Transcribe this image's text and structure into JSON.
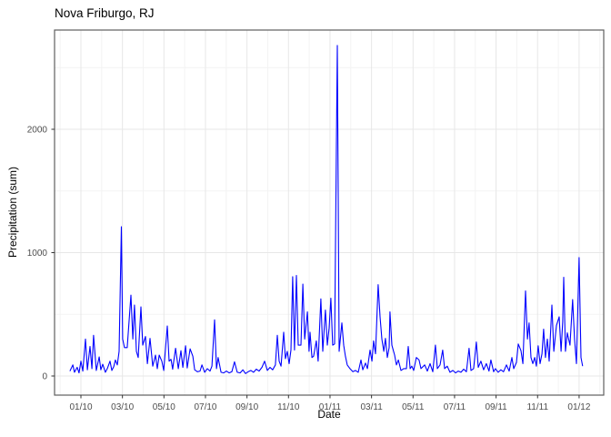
{
  "chart_data": {
    "type": "line",
    "title": "Nova Friburgo, RJ",
    "xlabel": "Date",
    "ylabel": "Precipitation (sum)",
    "legend": "none",
    "grid": "on",
    "line_color": "#0000FF",
    "background_color": "#ffffff",
    "grid_major_color": "#e7e7e7",
    "grid_minor_color": "#f3f3f3",
    "panel_border_color": "#5f5f5f",
    "axis_text_color": "#4d4d4d",
    "ylim": [
      -155,
      2805
    ],
    "xlim_months": [
      -1.27,
      25.18
    ],
    "y_ticks": [
      0,
      1000,
      2000
    ],
    "y_minor_ticks": [
      500,
      1500,
      2500
    ],
    "x_ticks": [
      {
        "pos": 0,
        "label": "01/10"
      },
      {
        "pos": 2,
        "label": "03/10"
      },
      {
        "pos": 4,
        "label": "05/10"
      },
      {
        "pos": 6,
        "label": "07/10"
      },
      {
        "pos": 8,
        "label": "09/10"
      },
      {
        "pos": 10,
        "label": "11/10"
      },
      {
        "pos": 12,
        "label": "01/11"
      },
      {
        "pos": 14,
        "label": "03/11"
      },
      {
        "pos": 16,
        "label": "05/11"
      },
      {
        "pos": 18,
        "label": "07/11"
      },
      {
        "pos": 20,
        "label": "09/11"
      },
      {
        "pos": 22,
        "label": "11/11"
      },
      {
        "pos": 24,
        "label": "01/12"
      }
    ],
    "x_minor_step": 1,
    "series": [
      {
        "name": "precipitation-sum",
        "x_unit": "months-since-2010-01",
        "points": [
          [
            -0.53,
            40
          ],
          [
            -0.39,
            90
          ],
          [
            -0.31,
            30
          ],
          [
            -0.18,
            70
          ],
          [
            -0.09,
            25
          ],
          [
            0,
            120
          ],
          [
            0.09,
            40
          ],
          [
            0.22,
            300
          ],
          [
            0.31,
            50
          ],
          [
            0.44,
            240
          ],
          [
            0.53,
            60
          ],
          [
            0.61,
            330
          ],
          [
            0.74,
            45
          ],
          [
            0.88,
            155
          ],
          [
            0.96,
            50
          ],
          [
            1.05,
            95
          ],
          [
            1.18,
            30
          ],
          [
            1.27,
            60
          ],
          [
            1.4,
            120
          ],
          [
            1.49,
            45
          ],
          [
            1.58,
            75
          ],
          [
            1.66,
            130
          ],
          [
            1.75,
            90
          ],
          [
            1.84,
            200
          ],
          [
            1.95,
            1210
          ],
          [
            2.01,
            300
          ],
          [
            2.1,
            230
          ],
          [
            2.23,
            230
          ],
          [
            2.41,
            655
          ],
          [
            2.5,
            300
          ],
          [
            2.58,
            575
          ],
          [
            2.67,
            200
          ],
          [
            2.76,
            150
          ],
          [
            2.89,
            560
          ],
          [
            2.98,
            250
          ],
          [
            3.11,
            320
          ],
          [
            3.2,
            100
          ],
          [
            3.33,
            305
          ],
          [
            3.46,
            80
          ],
          [
            3.59,
            170
          ],
          [
            3.68,
            60
          ],
          [
            3.77,
            170
          ],
          [
            3.9,
            120
          ],
          [
            3.99,
            45
          ],
          [
            4.16,
            405
          ],
          [
            4.25,
            120
          ],
          [
            4.34,
            135
          ],
          [
            4.42,
            55
          ],
          [
            4.56,
            225
          ],
          [
            4.69,
            60
          ],
          [
            4.82,
            205
          ],
          [
            4.91,
            70
          ],
          [
            5.04,
            245
          ],
          [
            5.12,
            65
          ],
          [
            5.26,
            220
          ],
          [
            5.39,
            160
          ],
          [
            5.48,
            50
          ],
          [
            5.61,
            35
          ],
          [
            5.74,
            40
          ],
          [
            5.83,
            90
          ],
          [
            5.96,
            30
          ],
          [
            6.09,
            60
          ],
          [
            6.22,
            40
          ],
          [
            6.31,
            80
          ],
          [
            6.44,
            455
          ],
          [
            6.53,
            60
          ],
          [
            6.61,
            150
          ],
          [
            6.75,
            30
          ],
          [
            6.88,
            25
          ],
          [
            7.01,
            40
          ],
          [
            7.14,
            25
          ],
          [
            7.27,
            35
          ],
          [
            7.4,
            115
          ],
          [
            7.53,
            30
          ],
          [
            7.67,
            25
          ],
          [
            7.8,
            50
          ],
          [
            7.93,
            20
          ],
          [
            8.06,
            35
          ],
          [
            8.19,
            45
          ],
          [
            8.32,
            30
          ],
          [
            8.45,
            55
          ],
          [
            8.58,
            40
          ],
          [
            8.72,
            70
          ],
          [
            8.85,
            120
          ],
          [
            8.98,
            45
          ],
          [
            9.11,
            70
          ],
          [
            9.24,
            50
          ],
          [
            9.37,
            90
          ],
          [
            9.46,
            330
          ],
          [
            9.55,
            120
          ],
          [
            9.64,
            80
          ],
          [
            9.77,
            355
          ],
          [
            9.85,
            140
          ],
          [
            9.94,
            200
          ],
          [
            10.03,
            100
          ],
          [
            10.12,
            210
          ],
          [
            10.2,
            805
          ],
          [
            10.29,
            210
          ],
          [
            10.38,
            815
          ],
          [
            10.47,
            250
          ],
          [
            10.6,
            250
          ],
          [
            10.69,
            745
          ],
          [
            10.78,
            300
          ],
          [
            10.91,
            520
          ],
          [
            10.99,
            200
          ],
          [
            11.04,
            355
          ],
          [
            11.13,
            150
          ],
          [
            11.21,
            160
          ],
          [
            11.34,
            285
          ],
          [
            11.43,
            120
          ],
          [
            11.56,
            625
          ],
          [
            11.65,
            200
          ],
          [
            11.78,
            535
          ],
          [
            11.87,
            250
          ],
          [
            11.96,
            390
          ],
          [
            12.04,
            630
          ],
          [
            12.13,
            250
          ],
          [
            12.22,
            260
          ],
          [
            12.35,
            2680
          ],
          [
            12.44,
            200
          ],
          [
            12.57,
            430
          ],
          [
            12.66,
            250
          ],
          [
            12.74,
            160
          ],
          [
            12.83,
            90
          ],
          [
            12.96,
            60
          ],
          [
            13.1,
            35
          ],
          [
            13.23,
            45
          ],
          [
            13.36,
            30
          ],
          [
            13.49,
            130
          ],
          [
            13.58,
            50
          ],
          [
            13.71,
            105
          ],
          [
            13.8,
            60
          ],
          [
            13.93,
            210
          ],
          [
            14.02,
            120
          ],
          [
            14.1,
            285
          ],
          [
            14.19,
            180
          ],
          [
            14.32,
            740
          ],
          [
            14.41,
            480
          ],
          [
            14.5,
            300
          ],
          [
            14.59,
            200
          ],
          [
            14.67,
            305
          ],
          [
            14.76,
            150
          ],
          [
            14.85,
            230
          ],
          [
            14.89,
            520
          ],
          [
            14.98,
            250
          ],
          [
            15.11,
            170
          ],
          [
            15.2,
            90
          ],
          [
            15.29,
            130
          ],
          [
            15.42,
            45
          ],
          [
            15.55,
            60
          ],
          [
            15.68,
            60
          ],
          [
            15.77,
            240
          ],
          [
            15.86,
            60
          ],
          [
            15.94,
            80
          ],
          [
            16.03,
            45
          ],
          [
            16.16,
            150
          ],
          [
            16.29,
            130
          ],
          [
            16.38,
            60
          ],
          [
            16.56,
            90
          ],
          [
            16.69,
            40
          ],
          [
            16.82,
            100
          ],
          [
            16.95,
            35
          ],
          [
            17.08,
            250
          ],
          [
            17.17,
            60
          ],
          [
            17.3,
            90
          ],
          [
            17.43,
            210
          ],
          [
            17.52,
            60
          ],
          [
            17.65,
            80
          ],
          [
            17.78,
            30
          ],
          [
            17.92,
            45
          ],
          [
            18.05,
            25
          ],
          [
            18.18,
            40
          ],
          [
            18.31,
            30
          ],
          [
            18.44,
            55
          ],
          [
            18.57,
            35
          ],
          [
            18.7,
            225
          ],
          [
            18.79,
            45
          ],
          [
            18.92,
            60
          ],
          [
            19.05,
            275
          ],
          [
            19.14,
            70
          ],
          [
            19.27,
            120
          ],
          [
            19.4,
            50
          ],
          [
            19.53,
            100
          ],
          [
            19.66,
            40
          ],
          [
            19.75,
            130
          ],
          [
            19.88,
            35
          ],
          [
            19.97,
            60
          ],
          [
            20.1,
            30
          ],
          [
            20.23,
            50
          ],
          [
            20.36,
            35
          ],
          [
            20.5,
            90
          ],
          [
            20.63,
            40
          ],
          [
            20.76,
            150
          ],
          [
            20.85,
            60
          ],
          [
            20.98,
            110
          ],
          [
            21.07,
            260
          ],
          [
            21.2,
            205
          ],
          [
            21.29,
            100
          ],
          [
            21.42,
            690
          ],
          [
            21.51,
            300
          ],
          [
            21.59,
            430
          ],
          [
            21.68,
            150
          ],
          [
            21.77,
            100
          ],
          [
            21.86,
            150
          ],
          [
            21.94,
            80
          ],
          [
            22.03,
            245
          ],
          [
            22.12,
            100
          ],
          [
            22.21,
            180
          ],
          [
            22.29,
            380
          ],
          [
            22.38,
            150
          ],
          [
            22.47,
            300
          ],
          [
            22.56,
            120
          ],
          [
            22.69,
            575
          ],
          [
            22.78,
            200
          ],
          [
            22.91,
            410
          ],
          [
            23.04,
            480
          ],
          [
            23.13,
            200
          ],
          [
            23.21,
            440
          ],
          [
            23.26,
            800
          ],
          [
            23.34,
            200
          ],
          [
            23.43,
            350
          ],
          [
            23.56,
            250
          ],
          [
            23.69,
            620
          ],
          [
            23.78,
            300
          ],
          [
            23.87,
            100
          ],
          [
            24,
            960
          ],
          [
            24.09,
            150
          ],
          [
            24.17,
            80
          ]
        ]
      }
    ]
  }
}
